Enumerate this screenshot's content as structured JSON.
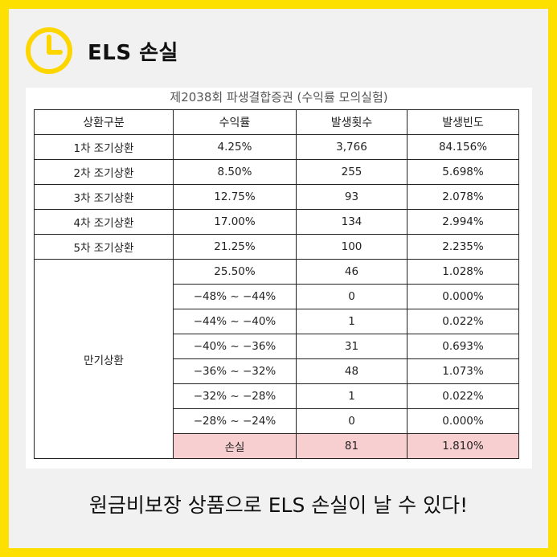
{
  "header": {
    "title": "ELS 손실"
  },
  "doc": {
    "title": "제2038회 파생결합증권 (수익률 모의실험)"
  },
  "table": {
    "columns": [
      "상환구분",
      "수익률",
      "발생횟수",
      "발생빈도"
    ],
    "early_rows": [
      {
        "type": "1차 조기상환",
        "rate": "4.25%",
        "count": "3,766",
        "freq": "84.156%"
      },
      {
        "type": "2차 조기상환",
        "rate": "8.50%",
        "count": "255",
        "freq": "5.698%"
      },
      {
        "type": "3차 조기상환",
        "rate": "12.75%",
        "count": "93",
        "freq": "2.078%"
      },
      {
        "type": "4차 조기상환",
        "rate": "17.00%",
        "count": "134",
        "freq": "2.994%"
      },
      {
        "type": "5차 조기상환",
        "rate": "21.25%",
        "count": "100",
        "freq": "2.235%"
      }
    ],
    "maturity_label": "만기상환",
    "maturity_rows": [
      {
        "rate": "25.50%",
        "count": "46",
        "freq": "1.028%"
      },
      {
        "rate": "−48% ~ −44%",
        "count": "0",
        "freq": "0.000%"
      },
      {
        "rate": "−44% ~ −40%",
        "count": "1",
        "freq": "0.022%"
      },
      {
        "rate": "−40% ~ −36%",
        "count": "31",
        "freq": "0.693%"
      },
      {
        "rate": "−36% ~ −32%",
        "count": "48",
        "freq": "1.073%"
      },
      {
        "rate": "−32% ~ −28%",
        "count": "1",
        "freq": "0.022%"
      },
      {
        "rate": "−28% ~ −24%",
        "count": "0",
        "freq": "0.000%"
      }
    ],
    "loss_row": {
      "rate": "손실",
      "count": "81",
      "freq": "1.810%"
    }
  },
  "caption": "원금비보장 상품으로 ELS 손실이 날 수 있다!",
  "colors": {
    "accent": "#fde000",
    "loss_highlight": "#f8cfd0"
  }
}
